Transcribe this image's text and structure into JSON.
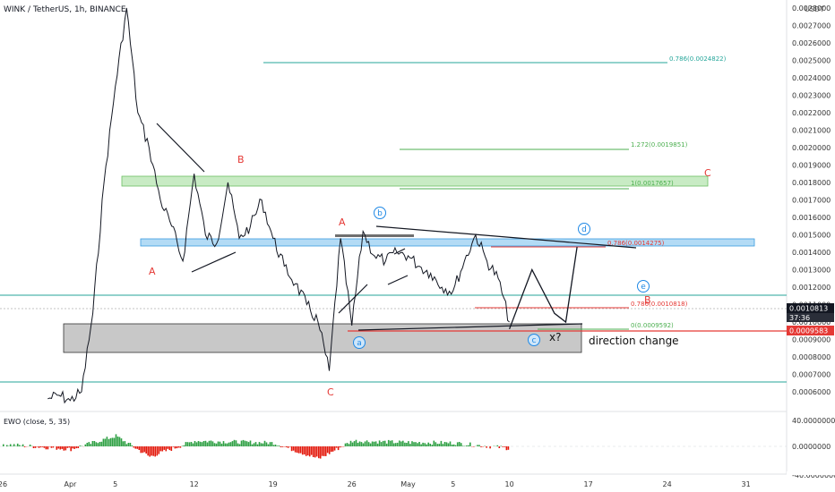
{
  "header": {
    "symbol": "WINK / TetherUS, 1h, BINANCE",
    "currency": "USDT"
  },
  "price_axis": {
    "ticks": [
      "0.0028000",
      "0.0027000",
      "0.0026000",
      "0.0025000",
      "0.0024000",
      "0.0023000",
      "0.0022000",
      "0.0021000",
      "0.0020000",
      "0.0019000",
      "0.0018000",
      "0.0017000",
      "0.0016000",
      "0.0015000",
      "0.0014000",
      "0.0013000",
      "0.0012000",
      "0.0011000",
      "0.0010000",
      "0.0009000",
      "0.0008000",
      "0.0007000",
      "0.0006000"
    ],
    "current_price": "0.0010813",
    "countdown": "37:36",
    "marked_price": "0.0009583",
    "colors": {
      "current_tag": "#131722",
      "marked_tag": "#e53935"
    }
  },
  "time_axis": {
    "ticks": [
      "26",
      "Apr",
      "5",
      "12",
      "19",
      "26",
      "May",
      "5",
      "10",
      "17",
      "24",
      "31"
    ]
  },
  "indicator": {
    "label": "EWO (close, 5, 35)",
    "ticks": [
      "40.0000000",
      "0.0000000",
      "-40.0000000"
    ],
    "colors": {
      "positive": "#2ea043",
      "negative": "#e3170a"
    }
  },
  "fib_levels": [
    {
      "label": "0.786(0.0024822)",
      "color": "#26a69a"
    },
    {
      "label": "1.272(0.0019851)",
      "color": "#4caf50"
    },
    {
      "label": "1(0.0017657)",
      "color": "#4caf50"
    },
    {
      "label": "0.786(0.0014275)",
      "color": "#e53935"
    },
    {
      "label": "0.786(0.0010818)",
      "color": "#e53935"
    },
    {
      "label": "0(0.0009592)",
      "color": "#4caf50"
    }
  ],
  "wave_labels": {
    "red": [
      "A",
      "B",
      "A",
      "C",
      "C",
      "B"
    ],
    "blue_circled": [
      "b",
      "a",
      "c",
      "d",
      "e"
    ]
  },
  "annotations": {
    "direction_change": "direction change",
    "question": "x?"
  },
  "chart_data": [
    {
      "type": "line",
      "title": "WINK / TetherUS, 1h, BINANCE",
      "xlabel": "",
      "ylabel": "",
      "ylim": [
        0.00052,
        0.00286
      ],
      "x": [
        "2021-03-30",
        "2021-03-31",
        "2021-04-01",
        "2021-04-02",
        "2021-04-03",
        "2021-04-04",
        "2021-04-05",
        "2021-04-06",
        "2021-04-07",
        "2021-04-08",
        "2021-04-09",
        "2021-04-10",
        "2021-04-11",
        "2021-04-12",
        "2021-04-13",
        "2021-04-14",
        "2021-04-15",
        "2021-04-16",
        "2021-04-17",
        "2021-04-18",
        "2021-04-19",
        "2021-04-20",
        "2021-04-21",
        "2021-04-22",
        "2021-04-23",
        "2021-04-24",
        "2021-04-25",
        "2021-04-26",
        "2021-04-27",
        "2021-04-28",
        "2021-04-29",
        "2021-04-30",
        "2021-05-01",
        "2021-05-02",
        "2021-05-03",
        "2021-05-04",
        "2021-05-05",
        "2021-05-06",
        "2021-05-07",
        "2021-05-08",
        "2021-05-09",
        "2021-05-10"
      ],
      "series": [
        {
          "values": [
            0.00056,
            0.00058,
            0.00055,
            0.0006,
            0.00105,
            0.0018,
            0.00235,
            0.0028,
            0.0022,
            0.002,
            0.0017,
            0.00155,
            0.00135,
            0.00185,
            0.0015,
            0.00145,
            0.0018,
            0.00148,
            0.00155,
            0.0017,
            0.00148,
            0.00132,
            0.00122,
            0.0011,
            0.001,
            0.00072,
            0.00148,
            0.00098,
            0.00152,
            0.00138,
            0.00135,
            0.0014,
            0.00138,
            0.00132,
            0.00128,
            0.0012,
            0.00118,
            0.00135,
            0.0015,
            0.00135,
            0.00125,
            0.001
          ]
        }
      ],
      "projection": {
        "x": [
          "2021-05-10",
          "2021-05-12",
          "2021-05-14",
          "2021-05-15",
          "2021-05-16"
        ],
        "values": [
          0.00096,
          0.0013,
          0.00105,
          0.001,
          0.00143
        ]
      },
      "levels": [
        {
          "label": "0.786(0.0024822)",
          "value": 0.0024822
        },
        {
          "label": "1.272(0.0019851)",
          "value": 0.0019851
        },
        {
          "label": "1(0.0017657)",
          "value": 0.0017657
        },
        {
          "label": "0.786(0.0014275)",
          "value": 0.0014275
        },
        {
          "label": "0.786(0.0010818)",
          "value": 0.0010818
        },
        {
          "label": "0(0.0009592)",
          "value": 0.0009592
        }
      ],
      "zones": [
        {
          "color": "green",
          "from": 0.00176,
          "to": 0.00182
        },
        {
          "color": "blue",
          "from": 0.00143,
          "to": 0.00147
        },
        {
          "color": "gray",
          "from": 0.00084,
          "to": 0.001
        }
      ]
    },
    {
      "type": "bar",
      "title": "EWO (close, 5, 35)",
      "ylim": [
        -40,
        40
      ],
      "x": [
        "2021-03-26",
        "2021-04-01",
        "2021-04-05",
        "2021-04-08",
        "2021-04-12",
        "2021-04-19",
        "2021-04-23",
        "2021-04-26",
        "2021-04-30",
        "2021-05-05",
        "2021-05-10"
      ],
      "values": [
        3,
        -4,
        15,
        -15,
        8,
        5,
        -18,
        8,
        6,
        5,
        -3
      ]
    }
  ]
}
